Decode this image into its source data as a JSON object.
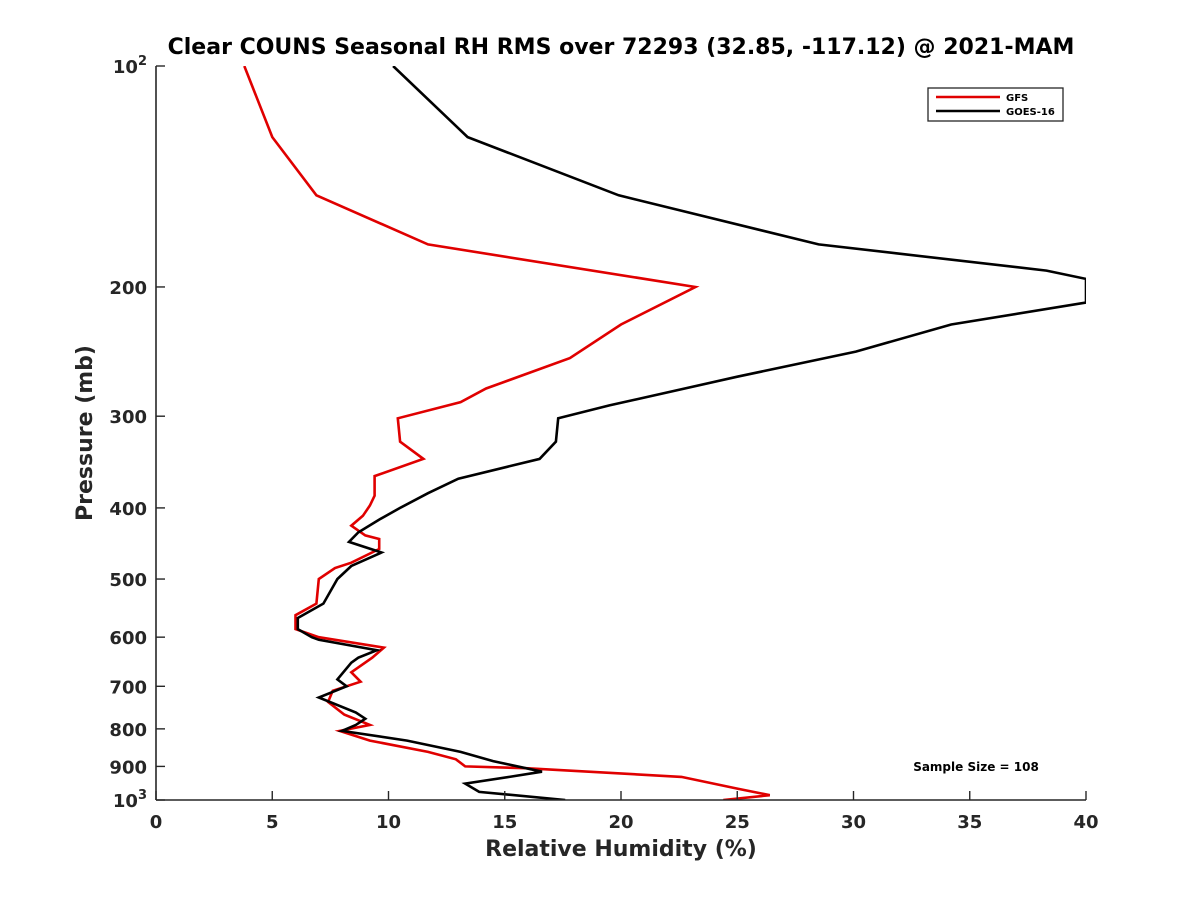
{
  "chart_data": {
    "type": "line",
    "title": "Clear COUNS Seasonal RH RMS over 72293 (32.85, -117.12) @ 2021-MAM",
    "xlabel": "Relative Humidity (%)",
    "ylabel": "Pressure (mb)",
    "xlim": [
      0,
      40
    ],
    "ylim": [
      100,
      1000
    ],
    "yscale": "log",
    "y_reversed": true,
    "grid": false,
    "xticks": [
      0,
      5,
      10,
      15,
      20,
      25,
      30,
      35,
      40
    ],
    "yticks": [
      {
        "value": 100,
        "base": "10",
        "exp": "2"
      },
      {
        "value": 200,
        "label": "200"
      },
      {
        "value": 300,
        "label": "300"
      },
      {
        "value": 400,
        "label": "400"
      },
      {
        "value": 500,
        "label": "500"
      },
      {
        "value": 600,
        "label": "600"
      },
      {
        "value": 700,
        "label": "700"
      },
      {
        "value": 800,
        "label": "800"
      },
      {
        "value": 900,
        "label": "900"
      },
      {
        "value": 1000,
        "base": "10",
        "exp": "3"
      }
    ],
    "legend": {
      "position": "top-right"
    },
    "annotation": "Sample Size = 108",
    "series": [
      {
        "name": "GFS",
        "color": "#e00000",
        "points": [
          [
            3.8,
            100
          ],
          [
            5.0,
            125
          ],
          [
            6.9,
            150
          ],
          [
            11.7,
            175
          ],
          [
            23.2,
            200
          ],
          [
            20.0,
            225
          ],
          [
            17.8,
            250
          ],
          [
            14.2,
            275
          ],
          [
            13.1,
            287
          ],
          [
            10.4,
            302
          ],
          [
            10.5,
            325
          ],
          [
            11.5,
            343
          ],
          [
            9.4,
            362
          ],
          [
            9.4,
            385
          ],
          [
            9.2,
            397
          ],
          [
            8.9,
            410
          ],
          [
            8.4,
            423
          ],
          [
            9.0,
            436
          ],
          [
            9.6,
            441
          ],
          [
            9.6,
            455
          ],
          [
            8.4,
            475
          ],
          [
            7.7,
            483
          ],
          [
            7.0,
            500
          ],
          [
            6.9,
            540
          ],
          [
            6.0,
            560
          ],
          [
            6.0,
            585
          ],
          [
            7.0,
            600
          ],
          [
            9.8,
            620
          ],
          [
            9.3,
            640
          ],
          [
            8.4,
            670
          ],
          [
            8.8,
            690
          ],
          [
            7.6,
            710
          ],
          [
            7.4,
            735
          ],
          [
            8.1,
            765
          ],
          [
            9.2,
            790
          ],
          [
            7.9,
            805
          ],
          [
            9.2,
            830
          ],
          [
            11.7,
            860
          ],
          [
            12.9,
            880
          ],
          [
            13.3,
            900
          ],
          [
            15.9,
            905
          ],
          [
            22.6,
            930
          ],
          [
            25.0,
            965
          ],
          [
            26.4,
            985
          ],
          [
            24.4,
            1000
          ]
        ]
      },
      {
        "name": "GOES-16",
        "color": "#000000",
        "points": [
          [
            10.2,
            100
          ],
          [
            13.4,
            125
          ],
          [
            19.9,
            150
          ],
          [
            28.5,
            175
          ],
          [
            38.3,
            190
          ],
          [
            40.0,
            195
          ],
          [
            40.0,
            210
          ],
          [
            34.2,
            225
          ],
          [
            30.1,
            245
          ],
          [
            25.0,
            265
          ],
          [
            19.5,
            290
          ],
          [
            17.3,
            302
          ],
          [
            17.2,
            325
          ],
          [
            16.5,
            343
          ],
          [
            13.0,
            365
          ],
          [
            11.7,
            382
          ],
          [
            10.5,
            400
          ],
          [
            9.6,
            415
          ],
          [
            8.7,
            432
          ],
          [
            8.3,
            445
          ],
          [
            9.7,
            460
          ],
          [
            8.4,
            480
          ],
          [
            7.8,
            500
          ],
          [
            7.2,
            540
          ],
          [
            6.1,
            565
          ],
          [
            6.1,
            585
          ],
          [
            6.7,
            600
          ],
          [
            7.0,
            605
          ],
          [
            9.5,
            625
          ],
          [
            8.7,
            640
          ],
          [
            8.4,
            650
          ],
          [
            7.8,
            685
          ],
          [
            8.2,
            700
          ],
          [
            7.0,
            725
          ],
          [
            8.6,
            760
          ],
          [
            9.0,
            775
          ],
          [
            8.6,
            790
          ],
          [
            8.0,
            805
          ],
          [
            10.8,
            830
          ],
          [
            13.1,
            860
          ],
          [
            14.5,
            885
          ],
          [
            16.6,
            915
          ],
          [
            15.2,
            930
          ],
          [
            13.3,
            950
          ],
          [
            13.9,
            975
          ],
          [
            17.6,
            1000
          ]
        ]
      }
    ]
  }
}
